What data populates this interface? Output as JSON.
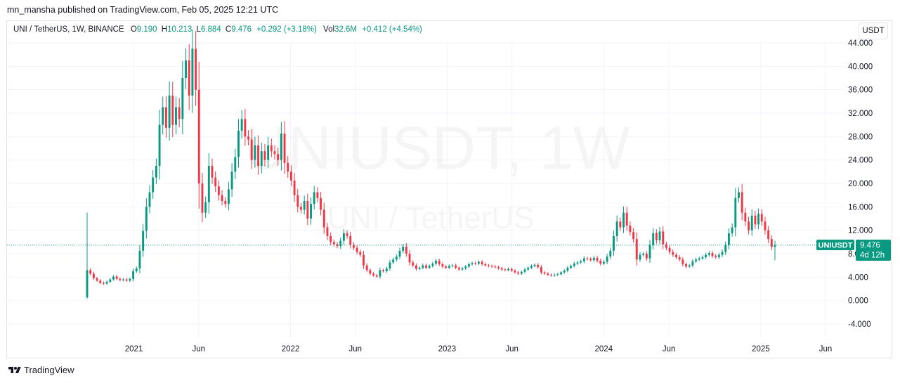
{
  "header": {
    "publish_line": "mn_mansha published on TradingView.com, Feb 05, 2025 12:21 UTC"
  },
  "legend": {
    "symbol": "UNI / TetherUS, 1W, BINANCE",
    "open_label": "O",
    "open": "9.190",
    "high_label": "H",
    "high": "10.213",
    "low_label": "L",
    "low": "6.884",
    "close_label": "C",
    "close": "9.476",
    "change": "+0.292 (+3.18%)",
    "vol_label": "Vol",
    "vol": "32.6M",
    "vol_change": "+0.412 (+4.54%)"
  },
  "currency_button": "USDT",
  "watermark": {
    "line1": "UNIUSDT, 1W",
    "line2": "UNI / TetherUS"
  },
  "price_tag": {
    "symbol": "UNIUSDT",
    "price": "9.476",
    "countdown": "4d 12h"
  },
  "footer": {
    "brand": "TradingView"
  },
  "colors": {
    "up": "#089981",
    "down": "#f23645",
    "current_line": "#089981",
    "grid": "#f0f3fa"
  },
  "chart_data": {
    "type": "candlestick",
    "symbol": "UNIUSDT",
    "interval": "1W",
    "y_ticks": [
      "44.000",
      "40.000",
      "36.000",
      "32.000",
      "28.000",
      "24.000",
      "20.000",
      "16.000",
      "12.000",
      "8.000",
      "4.000",
      "0.000",
      "-4.000"
    ],
    "y_tick_values": [
      44,
      40,
      36,
      32,
      28,
      24,
      20,
      16,
      12,
      8,
      4,
      0,
      -4
    ],
    "x_ticks": [
      {
        "label": "2021",
        "date": "2021-01-01"
      },
      {
        "label": "Jun",
        "date": "2021-06-01"
      },
      {
        "label": "2022",
        "date": "2022-01-01"
      },
      {
        "label": "Jun",
        "date": "2022-06-01"
      },
      {
        "label": "2023",
        "date": "2023-01-01"
      },
      {
        "label": "Jun",
        "date": "2023-06-01"
      },
      {
        "label": "2024",
        "date": "2024-01-01"
      },
      {
        "label": "Jun",
        "date": "2024-06-01"
      },
      {
        "label": "2025",
        "date": "2025-01-01"
      },
      {
        "label": "Jun",
        "date": "2025-06-01"
      }
    ],
    "ylim": [
      -5.5,
      45
    ],
    "current_price": 9.476,
    "closes": [
      5.2,
      4.6,
      3.8,
      3.4,
      3.0,
      2.9,
      3.2,
      3.6,
      4.1,
      3.7,
      3.5,
      3.6,
      3.4,
      3.7,
      5.0,
      5.5,
      8.5,
      11.9,
      16.0,
      18.5,
      21.0,
      23.0,
      30.0,
      33.0,
      29.5,
      35.0,
      30.0,
      33.0,
      31.0,
      38.0,
      41.0,
      35.0,
      43.0,
      36.0,
      20.0,
      15.0,
      16.8,
      23.0,
      21.0,
      19.5,
      18.0,
      17.0,
      16.5,
      19.0,
      22.0,
      24.5,
      29.0,
      31.0,
      28.0,
      27.5,
      24.0,
      26.5,
      23.0,
      25.5,
      24.0,
      26.5,
      25.5,
      25.0,
      24.0,
      28.5,
      23.5,
      22.0,
      20.5,
      18.0,
      16.0,
      15.5,
      17.0,
      14.0,
      16.5,
      18.5,
      17.5,
      15.5,
      12.5,
      11.0,
      10.0,
      9.6,
      9.3,
      10.2,
      11.5,
      11.0,
      9.5,
      9.0,
      8.3,
      7.8,
      6.0,
      5.2,
      4.6,
      4.3,
      4.1,
      5.2,
      5.0,
      5.5,
      6.5,
      7.0,
      7.5,
      8.5,
      9.2,
      8.0,
      6.5,
      6.0,
      5.4,
      5.6,
      6.0,
      5.6,
      5.9,
      6.3,
      6.8,
      6.2,
      5.8,
      5.6,
      5.9,
      6.0,
      5.6,
      5.3,
      5.5,
      5.8,
      6.2,
      6.4,
      6.3,
      6.6,
      6.2,
      6.0,
      5.9,
      5.8,
      5.7,
      5.5,
      5.3,
      5.2,
      5.4,
      5.1,
      4.8,
      4.6,
      4.9,
      5.3,
      5.6,
      5.9,
      6.1,
      5.7,
      4.8,
      4.6,
      4.4,
      4.3,
      4.4,
      4.5,
      4.8,
      5.1,
      5.6,
      5.9,
      6.3,
      6.5,
      6.7,
      7.2,
      7.1,
      6.9,
      7.3,
      6.8,
      6.3,
      6.6,
      7.5,
      8.5,
      11.0,
      13.5,
      12.5,
      15.0,
      12.8,
      11.7,
      10.5,
      7.0,
      7.8,
      8.0,
      7.2,
      9.5,
      11.5,
      10.3,
      11.8,
      9.6,
      9.0,
      8.3,
      7.8,
      7.4,
      7.0,
      6.2,
      5.8,
      6.0,
      6.7,
      7.0,
      7.2,
      7.4,
      7.8,
      8.1,
      7.6,
      7.4,
      7.8,
      8.3,
      9.5,
      11.5,
      12.5,
      17.5,
      18.5,
      15.0,
      13.5,
      12.0,
      14.5,
      13.0,
      14.8,
      13.5,
      12.0,
      10.5,
      9.184,
      9.476
    ]
  }
}
